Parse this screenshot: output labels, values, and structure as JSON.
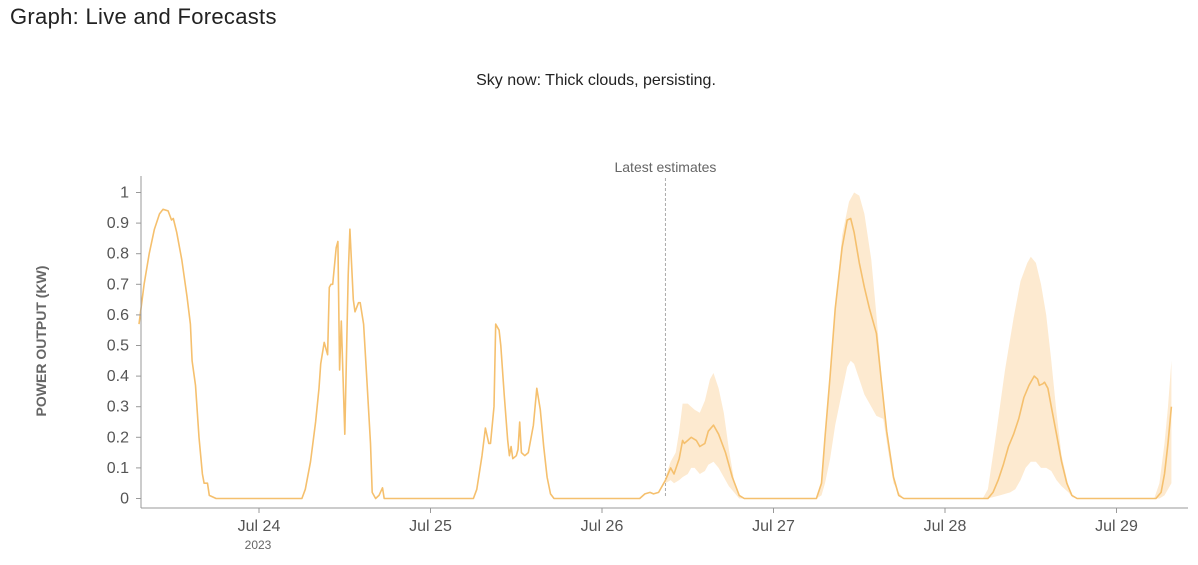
{
  "page": {
    "title": "Graph: Live and Forecasts",
    "subtitle": "Sky now: Thick clouds, persisting."
  },
  "chart_data": {
    "type": "area",
    "title": "",
    "xlabel": "",
    "ylabel": "POWER OUTPUT (KW)",
    "x_unit": "day (July 2023)",
    "xlim": [
      23.2,
      29.4
    ],
    "ylim": [
      0,
      1.05
    ],
    "yticks": [
      0,
      0.1,
      0.2,
      0.3,
      0.4,
      0.5,
      0.6,
      0.7,
      0.8,
      0.9,
      1
    ],
    "xticks": [
      {
        "x": 24,
        "label": "Jul 24",
        "sublabel": "2023"
      },
      {
        "x": 25,
        "label": "Jul 25",
        "sublabel": ""
      },
      {
        "x": 26,
        "label": "Jul 26",
        "sublabel": ""
      },
      {
        "x": 27,
        "label": "Jul 27",
        "sublabel": ""
      },
      {
        "x": 28,
        "label": "Jul 28",
        "sublabel": ""
      },
      {
        "x": 29,
        "label": "Jul 29",
        "sublabel": ""
      }
    ],
    "annotation": {
      "x": 26.37,
      "label": "Latest estimates"
    },
    "grid": false,
    "colors": {
      "line": "#f5c06e",
      "band": "#fde6c8",
      "annotation": "#aaaaaa",
      "axis": "#999999"
    },
    "series": [
      {
        "kind": "actual",
        "points": [
          [
            23.3,
            0.57
          ],
          [
            23.33,
            0.7
          ],
          [
            23.36,
            0.8
          ],
          [
            23.39,
            0.88
          ],
          [
            23.42,
            0.93
          ],
          [
            23.44,
            0.945
          ],
          [
            23.47,
            0.94
          ],
          [
            23.49,
            0.91
          ],
          [
            23.5,
            0.915
          ],
          [
            23.52,
            0.87
          ],
          [
            23.55,
            0.78
          ],
          [
            23.58,
            0.66
          ],
          [
            23.6,
            0.57
          ],
          [
            23.61,
            0.45
          ],
          [
            23.63,
            0.37
          ],
          [
            23.65,
            0.2
          ],
          [
            23.67,
            0.08
          ],
          [
            23.68,
            0.05
          ],
          [
            23.7,
            0.05
          ],
          [
            23.71,
            0.01
          ],
          [
            23.75,
            0.0
          ],
          [
            24.25,
            0.0
          ],
          [
            24.27,
            0.03
          ],
          [
            24.3,
            0.12
          ],
          [
            24.33,
            0.25
          ],
          [
            24.35,
            0.36
          ],
          [
            24.36,
            0.44
          ],
          [
            24.38,
            0.51
          ],
          [
            24.4,
            0.47
          ],
          [
            24.41,
            0.69
          ],
          [
            24.42,
            0.7
          ],
          [
            24.43,
            0.7
          ],
          [
            24.45,
            0.82
          ],
          [
            24.46,
            0.84
          ],
          [
            24.47,
            0.42
          ],
          [
            24.48,
            0.58
          ],
          [
            24.5,
            0.21
          ],
          [
            24.52,
            0.73
          ],
          [
            24.53,
            0.88
          ],
          [
            24.55,
            0.65
          ],
          [
            24.56,
            0.61
          ],
          [
            24.58,
            0.64
          ],
          [
            24.59,
            0.64
          ],
          [
            24.61,
            0.57
          ],
          [
            24.63,
            0.38
          ],
          [
            24.65,
            0.18
          ],
          [
            24.66,
            0.02
          ],
          [
            24.68,
            0.0
          ],
          [
            24.7,
            0.01
          ],
          [
            24.72,
            0.035
          ],
          [
            24.73,
            0.0
          ],
          [
            24.75,
            0.0
          ],
          [
            25.25,
            0.0
          ],
          [
            25.27,
            0.03
          ],
          [
            25.3,
            0.14
          ],
          [
            25.32,
            0.23
          ],
          [
            25.34,
            0.18
          ],
          [
            25.35,
            0.18
          ],
          [
            25.37,
            0.3
          ],
          [
            25.38,
            0.57
          ],
          [
            25.4,
            0.55
          ],
          [
            25.41,
            0.5
          ],
          [
            25.43,
            0.34
          ],
          [
            25.45,
            0.19
          ],
          [
            25.46,
            0.14
          ],
          [
            25.47,
            0.17
          ],
          [
            25.48,
            0.13
          ],
          [
            25.5,
            0.14
          ],
          [
            25.51,
            0.16
          ],
          [
            25.52,
            0.25
          ],
          [
            25.53,
            0.15
          ],
          [
            25.55,
            0.14
          ],
          [
            25.57,
            0.15
          ],
          [
            25.6,
            0.24
          ],
          [
            25.62,
            0.36
          ],
          [
            25.64,
            0.29
          ],
          [
            25.66,
            0.17
          ],
          [
            25.68,
            0.07
          ],
          [
            25.7,
            0.015
          ],
          [
            25.72,
            0.0
          ],
          [
            26.22,
            0.0
          ],
          [
            26.25,
            0.015
          ],
          [
            26.28,
            0.02
          ],
          [
            26.3,
            0.015
          ],
          [
            26.33,
            0.02
          ],
          [
            26.37,
            0.06
          ]
        ]
      },
      {
        "kind": "forecast",
        "points": [
          [
            26.37,
            0.06
          ],
          [
            26.4,
            0.1
          ],
          [
            26.42,
            0.08
          ],
          [
            26.45,
            0.13
          ],
          [
            26.47,
            0.19
          ],
          [
            26.48,
            0.18
          ],
          [
            26.5,
            0.19
          ],
          [
            26.52,
            0.2
          ],
          [
            26.55,
            0.19
          ],
          [
            26.57,
            0.17
          ],
          [
            26.6,
            0.18
          ],
          [
            26.62,
            0.22
          ],
          [
            26.65,
            0.24
          ],
          [
            26.68,
            0.21
          ],
          [
            26.72,
            0.15
          ],
          [
            26.76,
            0.07
          ],
          [
            26.8,
            0.01
          ],
          [
            26.83,
            0.0
          ],
          [
            27.25,
            0.0
          ],
          [
            27.28,
            0.05
          ],
          [
            27.3,
            0.2
          ],
          [
            27.33,
            0.4
          ],
          [
            27.36,
            0.62
          ],
          [
            27.4,
            0.82
          ],
          [
            27.43,
            0.91
          ],
          [
            27.45,
            0.915
          ],
          [
            27.47,
            0.87
          ],
          [
            27.5,
            0.77
          ],
          [
            27.53,
            0.69
          ],
          [
            27.56,
            0.62
          ],
          [
            27.6,
            0.54
          ],
          [
            27.63,
            0.38
          ],
          [
            27.66,
            0.22
          ],
          [
            27.7,
            0.07
          ],
          [
            27.73,
            0.01
          ],
          [
            27.76,
            0.0
          ],
          [
            28.25,
            0.0
          ],
          [
            28.28,
            0.02
          ],
          [
            28.31,
            0.06
          ],
          [
            28.34,
            0.11
          ],
          [
            28.37,
            0.17
          ],
          [
            28.4,
            0.21
          ],
          [
            28.43,
            0.26
          ],
          [
            28.46,
            0.33
          ],
          [
            28.49,
            0.37
          ],
          [
            28.52,
            0.4
          ],
          [
            28.54,
            0.39
          ],
          [
            28.55,
            0.37
          ],
          [
            28.57,
            0.375
          ],
          [
            28.58,
            0.38
          ],
          [
            28.6,
            0.36
          ],
          [
            28.62,
            0.3
          ],
          [
            28.65,
            0.21
          ],
          [
            28.68,
            0.12
          ],
          [
            28.71,
            0.05
          ],
          [
            28.74,
            0.01
          ],
          [
            28.77,
            0.0
          ],
          [
            29.23,
            0.0
          ],
          [
            29.26,
            0.02
          ],
          [
            29.28,
            0.08
          ],
          [
            29.3,
            0.18
          ],
          [
            29.32,
            0.3
          ]
        ]
      }
    ],
    "band": {
      "upper": [
        [
          26.37,
          0.07
        ],
        [
          26.4,
          0.12
        ],
        [
          26.43,
          0.15
        ],
        [
          26.45,
          0.22
        ],
        [
          26.47,
          0.31
        ],
        [
          26.5,
          0.31
        ],
        [
          26.52,
          0.3
        ],
        [
          26.54,
          0.29
        ],
        [
          26.57,
          0.28
        ],
        [
          26.6,
          0.32
        ],
        [
          26.63,
          0.39
        ],
        [
          26.65,
          0.41
        ],
        [
          26.68,
          0.36
        ],
        [
          26.71,
          0.28
        ],
        [
          26.74,
          0.16
        ],
        [
          26.77,
          0.06
        ],
        [
          26.8,
          0.01
        ],
        [
          26.83,
          0.0
        ],
        [
          27.25,
          0.0
        ],
        [
          27.28,
          0.06
        ],
        [
          27.31,
          0.25
        ],
        [
          27.35,
          0.55
        ],
        [
          27.4,
          0.86
        ],
        [
          27.44,
          0.97
        ],
        [
          27.47,
          1.0
        ],
        [
          27.5,
          0.99
        ],
        [
          27.53,
          0.93
        ],
        [
          27.57,
          0.78
        ],
        [
          27.6,
          0.6
        ],
        [
          27.63,
          0.4
        ],
        [
          27.66,
          0.22
        ],
        [
          27.7,
          0.07
        ],
        [
          27.73,
          0.01
        ],
        [
          27.76,
          0.0
        ],
        [
          28.22,
          0.0
        ],
        [
          28.25,
          0.03
        ],
        [
          28.3,
          0.22
        ],
        [
          28.35,
          0.42
        ],
        [
          28.4,
          0.59
        ],
        [
          28.44,
          0.71
        ],
        [
          28.48,
          0.77
        ],
        [
          28.5,
          0.79
        ],
        [
          28.53,
          0.77
        ],
        [
          28.56,
          0.7
        ],
        [
          28.59,
          0.6
        ],
        [
          28.62,
          0.45
        ],
        [
          28.65,
          0.28
        ],
        [
          28.68,
          0.14
        ],
        [
          28.72,
          0.04
        ],
        [
          28.75,
          0.0
        ],
        [
          29.22,
          0.0
        ],
        [
          29.25,
          0.05
        ],
        [
          29.28,
          0.18
        ],
        [
          29.3,
          0.3
        ],
        [
          29.32,
          0.45
        ]
      ],
      "lower": [
        [
          29.32,
          0.05
        ],
        [
          29.3,
          0.03
        ],
        [
          29.28,
          0.01
        ],
        [
          29.25,
          0.0
        ],
        [
          29.22,
          0.0
        ],
        [
          28.75,
          0.0
        ],
        [
          28.72,
          0.02
        ],
        [
          28.68,
          0.04
        ],
        [
          28.65,
          0.06
        ],
        [
          28.62,
          0.09
        ],
        [
          28.59,
          0.1
        ],
        [
          28.56,
          0.1
        ],
        [
          28.53,
          0.12
        ],
        [
          28.5,
          0.12
        ],
        [
          28.47,
          0.1
        ],
        [
          28.44,
          0.06
        ],
        [
          28.41,
          0.03
        ],
        [
          28.38,
          0.02
        ],
        [
          28.32,
          0.01
        ],
        [
          28.25,
          0.0
        ],
        [
          28.22,
          0.0
        ],
        [
          27.76,
          0.0
        ],
        [
          27.73,
          0.02
        ],
        [
          27.7,
          0.05
        ],
        [
          27.67,
          0.15
        ],
        [
          27.64,
          0.26
        ],
        [
          27.6,
          0.27
        ],
        [
          27.57,
          0.3
        ],
        [
          27.53,
          0.34
        ],
        [
          27.5,
          0.39
        ],
        [
          27.47,
          0.44
        ],
        [
          27.45,
          0.45
        ],
        [
          27.43,
          0.43
        ],
        [
          27.4,
          0.35
        ],
        [
          27.36,
          0.24
        ],
        [
          27.33,
          0.13
        ],
        [
          27.3,
          0.05
        ],
        [
          27.28,
          0.01
        ],
        [
          27.25,
          0.0
        ],
        [
          26.83,
          0.0
        ],
        [
          26.8,
          0.0
        ],
        [
          26.77,
          0.02
        ],
        [
          26.74,
          0.04
        ],
        [
          26.71,
          0.07
        ],
        [
          26.68,
          0.1
        ],
        [
          26.65,
          0.12
        ],
        [
          26.62,
          0.11
        ],
        [
          26.6,
          0.09
        ],
        [
          26.57,
          0.08
        ],
        [
          26.54,
          0.1
        ],
        [
          26.52,
          0.1
        ],
        [
          26.5,
          0.08
        ],
        [
          26.47,
          0.07
        ],
        [
          26.45,
          0.06
        ],
        [
          26.42,
          0.05
        ],
        [
          26.4,
          0.06
        ],
        [
          26.37,
          0.05
        ]
      ]
    }
  }
}
